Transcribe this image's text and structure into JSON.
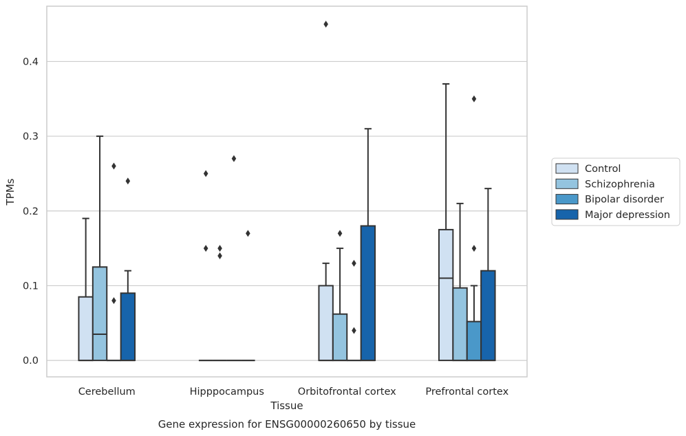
{
  "chart_data": {
    "type": "boxplot",
    "title": "",
    "xlabel": "Tissue",
    "ylabel": "TPMs",
    "caption": "Gene expression for ENSG00000260650 by tissue",
    "ylim": [
      -0.022,
      0.474
    ],
    "yticks": [
      0.0,
      0.1,
      0.2,
      0.3,
      0.4
    ],
    "ytick_labels": [
      "0.0",
      "0.1",
      "0.2",
      "0.3",
      "0.4"
    ],
    "grid": "horizontal",
    "legend_position": "right",
    "categories": [
      "Cerebellum",
      "Hipppocampus",
      "Orbitofrontal cortex",
      "Prefrontal cortex"
    ],
    "series": [
      {
        "name": "Control",
        "color": "#d0e1f2",
        "boxes": [
          {
            "q1": 0.0,
            "median": 0.0,
            "q3": 0.085,
            "whisker_low": 0.0,
            "whisker_high": 0.19,
            "outliers": []
          },
          {
            "q1": 0.0,
            "median": 0.0,
            "q3": 0.0,
            "whisker_low": 0.0,
            "whisker_high": 0.0,
            "outliers": [
              0.15,
              0.25
            ]
          },
          {
            "q1": 0.0,
            "median": 0.0,
            "q3": 0.1,
            "whisker_low": 0.0,
            "whisker_high": 0.13,
            "outliers": [
              0.45
            ]
          },
          {
            "q1": 0.0,
            "median": 0.11,
            "q3": 0.175,
            "whisker_low": 0.0,
            "whisker_high": 0.37,
            "outliers": []
          }
        ]
      },
      {
        "name": "Schizophrenia",
        "color": "#94c4df",
        "boxes": [
          {
            "q1": 0.0,
            "median": 0.035,
            "q3": 0.125,
            "whisker_low": 0.0,
            "whisker_high": 0.3,
            "outliers": []
          },
          {
            "q1": 0.0,
            "median": 0.0,
            "q3": 0.0,
            "whisker_low": 0.0,
            "whisker_high": 0.0,
            "outliers": [
              0.14,
              0.15
            ]
          },
          {
            "q1": 0.0,
            "median": 0.0,
            "q3": 0.062,
            "whisker_low": 0.0,
            "whisker_high": 0.15,
            "outliers": [
              0.17
            ]
          },
          {
            "q1": 0.0,
            "median": 0.0,
            "q3": 0.097,
            "whisker_low": 0.0,
            "whisker_high": 0.21,
            "outliers": []
          }
        ]
      },
      {
        "name": "Bipolar disorder",
        "color": "#4a98c9",
        "boxes": [
          {
            "q1": 0.0,
            "median": 0.0,
            "q3": 0.0,
            "whisker_low": 0.0,
            "whisker_high": 0.0,
            "outliers": [
              0.08,
              0.26
            ]
          },
          {
            "q1": 0.0,
            "median": 0.0,
            "q3": 0.0,
            "whisker_low": 0.0,
            "whisker_high": 0.0,
            "outliers": [
              0.27
            ]
          },
          {
            "q1": 0.0,
            "median": 0.0,
            "q3": 0.0,
            "whisker_low": 0.0,
            "whisker_high": 0.0,
            "outliers": [
              0.04,
              0.13
            ]
          },
          {
            "q1": 0.0,
            "median": 0.0,
            "q3": 0.052,
            "whisker_low": 0.0,
            "whisker_high": 0.1,
            "outliers": [
              0.15,
              0.35
            ]
          }
        ]
      },
      {
        "name": "Major depression",
        "color": "#1764ab",
        "boxes": [
          {
            "q1": 0.0,
            "median": 0.0,
            "q3": 0.09,
            "whisker_low": 0.0,
            "whisker_high": 0.12,
            "outliers": [
              0.24
            ]
          },
          {
            "q1": 0.0,
            "median": 0.0,
            "q3": 0.0,
            "whisker_low": 0.0,
            "whisker_high": 0.0,
            "outliers": [
              0.17
            ]
          },
          {
            "q1": 0.0,
            "median": 0.0,
            "q3": 0.18,
            "whisker_low": 0.0,
            "whisker_high": 0.31,
            "outliers": []
          },
          {
            "q1": 0.0,
            "median": 0.0,
            "q3": 0.12,
            "whisker_low": 0.0,
            "whisker_high": 0.23,
            "outliers": []
          }
        ]
      }
    ]
  }
}
